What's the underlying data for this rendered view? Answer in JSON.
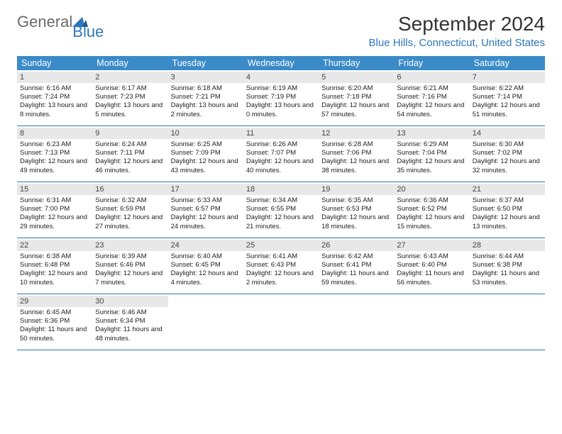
{
  "brand": {
    "part1": "General",
    "part2": "Blue"
  },
  "title": "September 2024",
  "location": "Blue Hills, Connecticut, United States",
  "colors": {
    "header_bg": "#3b8bc9",
    "accent": "#2c77b8",
    "daynum_bg": "#e8e8e8",
    "text": "#222222"
  },
  "day_names": [
    "Sunday",
    "Monday",
    "Tuesday",
    "Wednesday",
    "Thursday",
    "Friday",
    "Saturday"
  ],
  "weeks": [
    [
      {
        "n": "1",
        "sr": "Sunrise: 6:16 AM",
        "ss": "Sunset: 7:24 PM",
        "dl": "Daylight: 13 hours and 8 minutes."
      },
      {
        "n": "2",
        "sr": "Sunrise: 6:17 AM",
        "ss": "Sunset: 7:23 PM",
        "dl": "Daylight: 13 hours and 5 minutes."
      },
      {
        "n": "3",
        "sr": "Sunrise: 6:18 AM",
        "ss": "Sunset: 7:21 PM",
        "dl": "Daylight: 13 hours and 2 minutes."
      },
      {
        "n": "4",
        "sr": "Sunrise: 6:19 AM",
        "ss": "Sunset: 7:19 PM",
        "dl": "Daylight: 13 hours and 0 minutes."
      },
      {
        "n": "5",
        "sr": "Sunrise: 6:20 AM",
        "ss": "Sunset: 7:18 PM",
        "dl": "Daylight: 12 hours and 57 minutes."
      },
      {
        "n": "6",
        "sr": "Sunrise: 6:21 AM",
        "ss": "Sunset: 7:16 PM",
        "dl": "Daylight: 12 hours and 54 minutes."
      },
      {
        "n": "7",
        "sr": "Sunrise: 6:22 AM",
        "ss": "Sunset: 7:14 PM",
        "dl": "Daylight: 12 hours and 51 minutes."
      }
    ],
    [
      {
        "n": "8",
        "sr": "Sunrise: 6:23 AM",
        "ss": "Sunset: 7:13 PM",
        "dl": "Daylight: 12 hours and 49 minutes."
      },
      {
        "n": "9",
        "sr": "Sunrise: 6:24 AM",
        "ss": "Sunset: 7:11 PM",
        "dl": "Daylight: 12 hours and 46 minutes."
      },
      {
        "n": "10",
        "sr": "Sunrise: 6:25 AM",
        "ss": "Sunset: 7:09 PM",
        "dl": "Daylight: 12 hours and 43 minutes."
      },
      {
        "n": "11",
        "sr": "Sunrise: 6:26 AM",
        "ss": "Sunset: 7:07 PM",
        "dl": "Daylight: 12 hours and 40 minutes."
      },
      {
        "n": "12",
        "sr": "Sunrise: 6:28 AM",
        "ss": "Sunset: 7:06 PM",
        "dl": "Daylight: 12 hours and 38 minutes."
      },
      {
        "n": "13",
        "sr": "Sunrise: 6:29 AM",
        "ss": "Sunset: 7:04 PM",
        "dl": "Daylight: 12 hours and 35 minutes."
      },
      {
        "n": "14",
        "sr": "Sunrise: 6:30 AM",
        "ss": "Sunset: 7:02 PM",
        "dl": "Daylight: 12 hours and 32 minutes."
      }
    ],
    [
      {
        "n": "15",
        "sr": "Sunrise: 6:31 AM",
        "ss": "Sunset: 7:00 PM",
        "dl": "Daylight: 12 hours and 29 minutes."
      },
      {
        "n": "16",
        "sr": "Sunrise: 6:32 AM",
        "ss": "Sunset: 6:59 PM",
        "dl": "Daylight: 12 hours and 27 minutes."
      },
      {
        "n": "17",
        "sr": "Sunrise: 6:33 AM",
        "ss": "Sunset: 6:57 PM",
        "dl": "Daylight: 12 hours and 24 minutes."
      },
      {
        "n": "18",
        "sr": "Sunrise: 6:34 AM",
        "ss": "Sunset: 6:55 PM",
        "dl": "Daylight: 12 hours and 21 minutes."
      },
      {
        "n": "19",
        "sr": "Sunrise: 6:35 AM",
        "ss": "Sunset: 6:53 PM",
        "dl": "Daylight: 12 hours and 18 minutes."
      },
      {
        "n": "20",
        "sr": "Sunrise: 6:36 AM",
        "ss": "Sunset: 6:52 PM",
        "dl": "Daylight: 12 hours and 15 minutes."
      },
      {
        "n": "21",
        "sr": "Sunrise: 6:37 AM",
        "ss": "Sunset: 6:50 PM",
        "dl": "Daylight: 12 hours and 13 minutes."
      }
    ],
    [
      {
        "n": "22",
        "sr": "Sunrise: 6:38 AM",
        "ss": "Sunset: 6:48 PM",
        "dl": "Daylight: 12 hours and 10 minutes."
      },
      {
        "n": "23",
        "sr": "Sunrise: 6:39 AM",
        "ss": "Sunset: 6:46 PM",
        "dl": "Daylight: 12 hours and 7 minutes."
      },
      {
        "n": "24",
        "sr": "Sunrise: 6:40 AM",
        "ss": "Sunset: 6:45 PM",
        "dl": "Daylight: 12 hours and 4 minutes."
      },
      {
        "n": "25",
        "sr": "Sunrise: 6:41 AM",
        "ss": "Sunset: 6:43 PM",
        "dl": "Daylight: 12 hours and 2 minutes."
      },
      {
        "n": "26",
        "sr": "Sunrise: 6:42 AM",
        "ss": "Sunset: 6:41 PM",
        "dl": "Daylight: 11 hours and 59 minutes."
      },
      {
        "n": "27",
        "sr": "Sunrise: 6:43 AM",
        "ss": "Sunset: 6:40 PM",
        "dl": "Daylight: 11 hours and 56 minutes."
      },
      {
        "n": "28",
        "sr": "Sunrise: 6:44 AM",
        "ss": "Sunset: 6:38 PM",
        "dl": "Daylight: 11 hours and 53 minutes."
      }
    ],
    [
      {
        "n": "29",
        "sr": "Sunrise: 6:45 AM",
        "ss": "Sunset: 6:36 PM",
        "dl": "Daylight: 11 hours and 50 minutes."
      },
      {
        "n": "30",
        "sr": "Sunrise: 6:46 AM",
        "ss": "Sunset: 6:34 PM",
        "dl": "Daylight: 11 hours and 48 minutes."
      },
      null,
      null,
      null,
      null,
      null
    ]
  ]
}
